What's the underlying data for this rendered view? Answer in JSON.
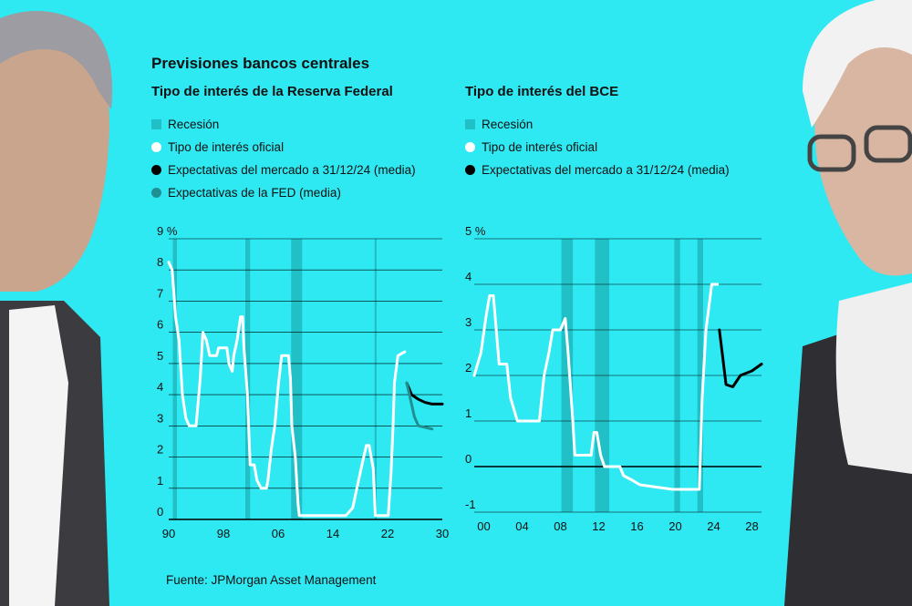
{
  "header": {
    "title": "Previsiones bancos centrales",
    "subtitle_fed": "Tipo de interés de la Reserva Federal",
    "subtitle_ecb": "Tipo de interés del BCE"
  },
  "legend_fed": [
    {
      "label": "Recesión",
      "shape": "box",
      "color": "#21c0c6"
    },
    {
      "label": "Tipo de interés oficial",
      "shape": "dot",
      "color": "#ffffff"
    },
    {
      "label": "Expectativas del mercado a 31/12/24 (media)",
      "shape": "dot",
      "color": "#000000"
    },
    {
      "label": "Expectativas de la FED (media)",
      "shape": "dot",
      "color": "#1f8f92"
    }
  ],
  "legend_ecb": [
    {
      "label": "Recesión",
      "shape": "box",
      "color": "#21c0c6"
    },
    {
      "label": "Tipo de interés oficial",
      "shape": "dot",
      "color": "#ffffff"
    },
    {
      "label": "Expectativas del mercado a 31/12/24 (media)",
      "shape": "dot",
      "color": "#000000"
    }
  ],
  "source": "Fuente: JPMorgan Asset Management",
  "colors": {
    "background": "#2ee9f2",
    "recession": "#21c0c6",
    "official": "#ffffff",
    "market": "#000000",
    "fed": "#1f8f92"
  },
  "chart_data": [
    {
      "id": "fed",
      "type": "line",
      "title": "Tipo de interés de la Reserva Federal",
      "xlim": [
        1990,
        2030
      ],
      "ylim": [
        0,
        9
      ],
      "y_ticks": [
        0,
        1,
        2,
        3,
        4,
        5,
        6,
        7,
        8,
        9
      ],
      "y_tick_labels": [
        "0",
        "1",
        "2",
        "3",
        "4",
        "5",
        "6",
        "7",
        "8",
        "9 %"
      ],
      "x_ticks": [
        1990,
        1998,
        2006,
        2014,
        2022,
        2030
      ],
      "x_tick_labels": [
        "90",
        "98",
        "06",
        "14",
        "22",
        "30"
      ],
      "grid": true,
      "recessions": [
        [
          1990.6,
          1991.2
        ],
        [
          2001.2,
          2001.9
        ],
        [
          2007.9,
          2009.5
        ],
        [
          2020.1,
          2020.4
        ]
      ],
      "series": [
        {
          "name": "Tipo de interés oficial",
          "color": "#ffffff",
          "points": [
            [
              1990,
              8.25
            ],
            [
              1990.5,
              8
            ],
            [
              1991,
              6.5
            ],
            [
              1991.5,
              5.75
            ],
            [
              1992,
              4
            ],
            [
              1992.5,
              3.25
            ],
            [
              1993,
              3
            ],
            [
              1994,
              3
            ],
            [
              1994.6,
              4.5
            ],
            [
              1995,
              6
            ],
            [
              1995.5,
              5.75
            ],
            [
              1996,
              5.25
            ],
            [
              1997,
              5.25
            ],
            [
              1997.3,
              5.5
            ],
            [
              1998.5,
              5.5
            ],
            [
              1998.8,
              5
            ],
            [
              1999.3,
              4.75
            ],
            [
              1999.5,
              5.25
            ],
            [
              2000,
              5.75
            ],
            [
              2000.5,
              6.5
            ],
            [
              2000.8,
              6.5
            ],
            [
              2001,
              5.5
            ],
            [
              2001.5,
              4
            ],
            [
              2001.9,
              1.75
            ],
            [
              2002.5,
              1.75
            ],
            [
              2002.9,
              1.25
            ],
            [
              2003.5,
              1
            ],
            [
              2004.3,
              1
            ],
            [
              2004.5,
              1.25
            ],
            [
              2005,
              2.25
            ],
            [
              2005.5,
              3
            ],
            [
              2006,
              4.25
            ],
            [
              2006.5,
              5.25
            ],
            [
              2007.5,
              5.25
            ],
            [
              2007.8,
              4.5
            ],
            [
              2008,
              3
            ],
            [
              2008.5,
              2
            ],
            [
              2008.9,
              0.5
            ],
            [
              2009.1,
              0.125
            ],
            [
              2015.9,
              0.125
            ],
            [
              2016.9,
              0.375
            ],
            [
              2017.5,
              1
            ],
            [
              2018,
              1.5
            ],
            [
              2018.5,
              2
            ],
            [
              2018.9,
              2.375
            ],
            [
              2019.3,
              2.375
            ],
            [
              2019.6,
              2
            ],
            [
              2019.9,
              1.625
            ],
            [
              2020.2,
              0.125
            ],
            [
              2022.1,
              0.125
            ],
            [
              2022.5,
              1.5
            ],
            [
              2022.8,
              3
            ],
            [
              2023,
              4.375
            ],
            [
              2023.5,
              5.25
            ],
            [
              2024.5,
              5.375
            ]
          ]
        },
        {
          "name": "Expectativas del mercado a 31/12/24 (media)",
          "color": "#000000",
          "points": [
            [
              2024.8,
              4.375
            ],
            [
              2025.5,
              4
            ],
            [
              2026.5,
              3.85
            ],
            [
              2027.5,
              3.75
            ],
            [
              2028.5,
              3.7
            ],
            [
              2030,
              3.7
            ]
          ]
        },
        {
          "name": "Expectativas de la FED (media)",
          "color": "#1f8f92",
          "points": [
            [
              2024.8,
              4.375
            ],
            [
              2025.3,
              3.9
            ],
            [
              2025.9,
              3.3
            ],
            [
              2026.5,
              3
            ],
            [
              2027.5,
              2.95
            ],
            [
              2028.5,
              2.9
            ]
          ]
        }
      ]
    },
    {
      "id": "ecb",
      "type": "line",
      "title": "Tipo de interés del BCE",
      "xlim": [
        1999,
        2029
      ],
      "ylim": [
        -1,
        5
      ],
      "y_ticks": [
        -1,
        0,
        1,
        2,
        3,
        4,
        5
      ],
      "y_tick_labels": [
        "-1",
        "0",
        "1",
        "2",
        "3",
        "4",
        "5 %"
      ],
      "x_ticks": [
        2000,
        2004,
        2008,
        2012,
        2016,
        2020,
        2024,
        2028
      ],
      "x_tick_labels": [
        "00",
        "04",
        "08",
        "12",
        "16",
        "20",
        "24",
        "28"
      ],
      "grid": true,
      "recessions": [
        [
          2008.1,
          2009.3
        ],
        [
          2011.6,
          2013.1
        ],
        [
          2019.9,
          2020.5
        ],
        [
          2022.3,
          2022.9
        ]
      ],
      "series": [
        {
          "name": "Tipo de interés oficial",
          "color": "#ffffff",
          "points": [
            [
              1999,
              2
            ],
            [
              1999.7,
              2.5
            ],
            [
              2000.2,
              3.25
            ],
            [
              2000.6,
              3.75
            ],
            [
              2001,
              3.75
            ],
            [
              2001.6,
              2.25
            ],
            [
              2002.4,
              2.25
            ],
            [
              2002.8,
              1.5
            ],
            [
              2003.5,
              1
            ],
            [
              2005.8,
              1
            ],
            [
              2006.3,
              2
            ],
            [
              2006.8,
              2.5
            ],
            [
              2007.2,
              3
            ],
            [
              2008,
              3
            ],
            [
              2008.5,
              3.25
            ],
            [
              2008.8,
              2.5
            ],
            [
              2009.3,
              1
            ],
            [
              2009.5,
              0.25
            ],
            [
              2011.2,
              0.25
            ],
            [
              2011.5,
              0.75
            ],
            [
              2011.8,
              0.75
            ],
            [
              2012.2,
              0.25
            ],
            [
              2012.6,
              0
            ],
            [
              2014.2,
              0
            ],
            [
              2014.6,
              -0.2
            ],
            [
              2015.5,
              -0.3
            ],
            [
              2016.3,
              -0.4
            ],
            [
              2019.7,
              -0.5
            ],
            [
              2022.5,
              -0.5
            ],
            [
              2022.8,
              1.5
            ],
            [
              2023.2,
              3
            ],
            [
              2023.8,
              4
            ],
            [
              2024.4,
              4
            ]
          ]
        },
        {
          "name": "Expectativas del mercado a 31/12/24 (media)",
          "color": "#000000",
          "points": [
            [
              2024.6,
              3
            ],
            [
              2025.3,
              1.8
            ],
            [
              2026,
              1.75
            ],
            [
              2026.8,
              2
            ],
            [
              2028,
              2.1
            ],
            [
              2029,
              2.25
            ]
          ]
        }
      ]
    }
  ]
}
